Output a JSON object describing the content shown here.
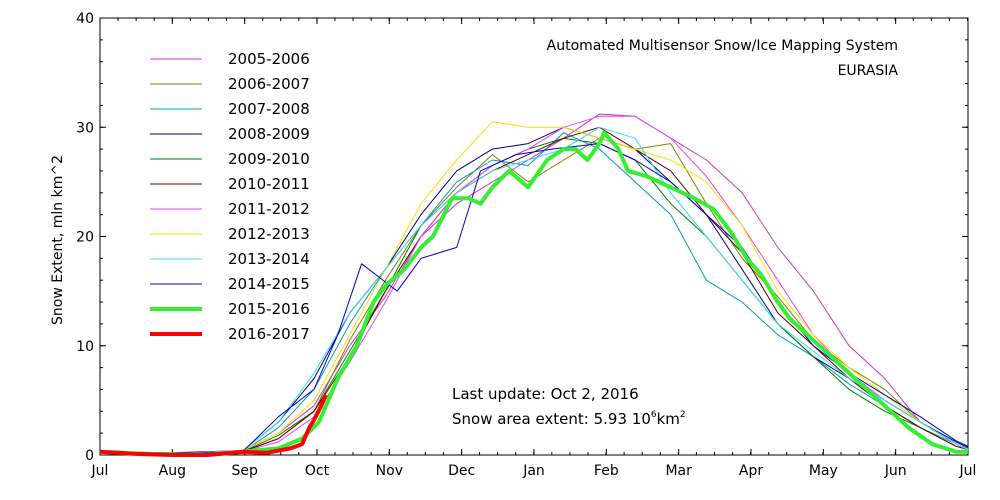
{
  "chart_data": {
    "type": "line",
    "title": "Automated  Multisensor Snow/Ice Mapping System",
    "subtitle": "EURASIA",
    "xlabel": "",
    "ylabel": "Snow Extent, mln km^2",
    "ylim": [
      0,
      40
    ],
    "y_ticks": [
      "0",
      "10",
      "20",
      "30",
      "40"
    ],
    "x_ticks": [
      "Jul",
      "Aug",
      "Sep",
      "Oct",
      "Nov",
      "Dec",
      "Jan",
      "Feb",
      "Mar",
      "Apr",
      "May",
      "Jun",
      "Jul"
    ],
    "grid": false,
    "legend_position": "top-left",
    "annotations": {
      "last_update": "Last update: Oct  2, 2016",
      "extent_text": "Snow area extent:  5.93 10",
      "extent_exp": "6",
      "extent_unit": "km",
      "extent_unit_exp": "2"
    },
    "series": [
      {
        "name": "2005-2006",
        "color": "#cc33cc",
        "width": 1,
        "points": [
          [
            0,
            0.3
          ],
          [
            30,
            0.1
          ],
          [
            60,
            0.4
          ],
          [
            75,
            2
          ],
          [
            90,
            4.5
          ],
          [
            105,
            10
          ],
          [
            120,
            14.5
          ],
          [
            135,
            20
          ],
          [
            150,
            23
          ],
          [
            165,
            25
          ],
          [
            180,
            27
          ],
          [
            195,
            29
          ],
          [
            210,
            31.2
          ],
          [
            225,
            31
          ],
          [
            240,
            29
          ],
          [
            255,
            27
          ],
          [
            270,
            24
          ],
          [
            285,
            19
          ],
          [
            300,
            15
          ],
          [
            315,
            10
          ],
          [
            330,
            7
          ],
          [
            345,
            3
          ],
          [
            360,
            1
          ],
          [
            365,
            0.6
          ]
        ]
      },
      {
        "name": "2006-2007",
        "color": "#808000",
        "width": 1,
        "points": [
          [
            0,
            0.3
          ],
          [
            30,
            0.1
          ],
          [
            60,
            0.3
          ],
          [
            75,
            1.5
          ],
          [
            90,
            4
          ],
          [
            105,
            10.5
          ],
          [
            120,
            16
          ],
          [
            135,
            21
          ],
          [
            150,
            24.5
          ],
          [
            165,
            27.5
          ],
          [
            180,
            25
          ],
          [
            195,
            27
          ],
          [
            210,
            29
          ],
          [
            225,
            28
          ],
          [
            240,
            28.5
          ],
          [
            255,
            23
          ],
          [
            270,
            18
          ],
          [
            285,
            14.5
          ],
          [
            300,
            10.5
          ],
          [
            315,
            8
          ],
          [
            330,
            6
          ],
          [
            345,
            3
          ],
          [
            360,
            1
          ],
          [
            365,
            0.5
          ]
        ]
      },
      {
        "name": "2007-2008",
        "color": "#0099cc",
        "width": 1,
        "points": [
          [
            0,
            0.3
          ],
          [
            30,
            0.1
          ],
          [
            60,
            0.3
          ],
          [
            75,
            2.5
          ],
          [
            90,
            6
          ],
          [
            105,
            12
          ],
          [
            120,
            17
          ],
          [
            135,
            21
          ],
          [
            150,
            25
          ],
          [
            165,
            27
          ],
          [
            180,
            26.5
          ],
          [
            195,
            29.5
          ],
          [
            210,
            28
          ],
          [
            225,
            25
          ],
          [
            240,
            22
          ],
          [
            255,
            16
          ],
          [
            270,
            14
          ],
          [
            285,
            11
          ],
          [
            300,
            9
          ],
          [
            315,
            6.5
          ],
          [
            330,
            4.5
          ],
          [
            345,
            2.5
          ],
          [
            360,
            1
          ],
          [
            365,
            0.5
          ]
        ]
      },
      {
        "name": "2008-2009",
        "color": "#000080",
        "width": 1,
        "points": [
          [
            0,
            0.3
          ],
          [
            30,
            0.2
          ],
          [
            60,
            0.4
          ],
          [
            75,
            3
          ],
          [
            90,
            7
          ],
          [
            105,
            13
          ],
          [
            120,
            17
          ],
          [
            135,
            22
          ],
          [
            150,
            26
          ],
          [
            165,
            28
          ],
          [
            180,
            28.5
          ],
          [
            195,
            30
          ],
          [
            210,
            29
          ],
          [
            225,
            28
          ],
          [
            240,
            25
          ],
          [
            255,
            22
          ],
          [
            270,
            17
          ],
          [
            285,
            12
          ],
          [
            300,
            9
          ],
          [
            315,
            7
          ],
          [
            330,
            5
          ],
          [
            345,
            3
          ],
          [
            360,
            1.2
          ],
          [
            365,
            0.7
          ]
        ]
      },
      {
        "name": "2009-2010",
        "color": "#008000",
        "width": 1,
        "points": [
          [
            0,
            0.3
          ],
          [
            30,
            0.1
          ],
          [
            60,
            0.3
          ],
          [
            75,
            1.8
          ],
          [
            90,
            4
          ],
          [
            105,
            9.5
          ],
          [
            120,
            15
          ],
          [
            135,
            21
          ],
          [
            150,
            24
          ],
          [
            165,
            26.5
          ],
          [
            180,
            28
          ],
          [
            195,
            29
          ],
          [
            210,
            28.5
          ],
          [
            225,
            27
          ],
          [
            240,
            23
          ],
          [
            255,
            20
          ],
          [
            270,
            16
          ],
          [
            285,
            12
          ],
          [
            300,
            9
          ],
          [
            315,
            6
          ],
          [
            330,
            4
          ],
          [
            345,
            2.5
          ],
          [
            360,
            0.8
          ],
          [
            365,
            0.5
          ]
        ]
      },
      {
        "name": "2010-2011",
        "color": "#660000",
        "width": 1,
        "points": [
          [
            0,
            0.3
          ],
          [
            30,
            0.1
          ],
          [
            60,
            0.3
          ],
          [
            75,
            1.5
          ],
          [
            90,
            4
          ],
          [
            105,
            9
          ],
          [
            120,
            15
          ],
          [
            135,
            20
          ],
          [
            150,
            24
          ],
          [
            165,
            26
          ],
          [
            180,
            27.5
          ],
          [
            195,
            29
          ],
          [
            210,
            30
          ],
          [
            225,
            28
          ],
          [
            240,
            26
          ],
          [
            255,
            22
          ],
          [
            270,
            18.5
          ],
          [
            285,
            13
          ],
          [
            300,
            10
          ],
          [
            315,
            7
          ],
          [
            330,
            4.5
          ],
          [
            345,
            2.5
          ],
          [
            360,
            0.8
          ],
          [
            365,
            0.5
          ]
        ]
      },
      {
        "name": "2011-2012",
        "color": "#ee44ee",
        "width": 1,
        "points": [
          [
            0,
            0.3
          ],
          [
            30,
            0.1
          ],
          [
            60,
            0.3
          ],
          [
            75,
            1.2
          ],
          [
            90,
            3.5
          ],
          [
            105,
            8.5
          ],
          [
            120,
            14
          ],
          [
            135,
            20
          ],
          [
            150,
            24
          ],
          [
            165,
            26.5
          ],
          [
            180,
            28
          ],
          [
            195,
            30
          ],
          [
            210,
            31
          ],
          [
            225,
            31
          ],
          [
            240,
            29
          ],
          [
            255,
            25.5
          ],
          [
            270,
            21
          ],
          [
            285,
            16
          ],
          [
            300,
            11
          ],
          [
            315,
            7.5
          ],
          [
            330,
            5
          ],
          [
            345,
            3
          ],
          [
            360,
            1
          ],
          [
            365,
            0.5
          ]
        ]
      },
      {
        "name": "2012-2013",
        "color": "#ffdd00",
        "width": 1,
        "points": [
          [
            0,
            0.3
          ],
          [
            30,
            0.1
          ],
          [
            60,
            0.4
          ],
          [
            75,
            2
          ],
          [
            90,
            5
          ],
          [
            105,
            11
          ],
          [
            120,
            17
          ],
          [
            135,
            23
          ],
          [
            150,
            27
          ],
          [
            165,
            30.5
          ],
          [
            180,
            30
          ],
          [
            195,
            30
          ],
          [
            210,
            29
          ],
          [
            225,
            28
          ],
          [
            240,
            27
          ],
          [
            255,
            25
          ],
          [
            270,
            21
          ],
          [
            285,
            15
          ],
          [
            300,
            11
          ],
          [
            315,
            8
          ],
          [
            330,
            5.5
          ],
          [
            345,
            3
          ],
          [
            360,
            1
          ],
          [
            365,
            0.5
          ]
        ]
      },
      {
        "name": "2013-2014",
        "color": "#33ddee",
        "width": 1,
        "points": [
          [
            0,
            0.3
          ],
          [
            30,
            0.1
          ],
          [
            60,
            0.4
          ],
          [
            75,
            3
          ],
          [
            90,
            7.5
          ],
          [
            105,
            13
          ],
          [
            120,
            17
          ],
          [
            135,
            21
          ],
          [
            150,
            24
          ],
          [
            165,
            26
          ],
          [
            180,
            27
          ],
          [
            195,
            28
          ],
          [
            210,
            30
          ],
          [
            225,
            29
          ],
          [
            240,
            24
          ],
          [
            255,
            20
          ],
          [
            270,
            16
          ],
          [
            285,
            12
          ],
          [
            300,
            9.5
          ],
          [
            315,
            7
          ],
          [
            330,
            5
          ],
          [
            345,
            3
          ],
          [
            360,
            1
          ],
          [
            365,
            0.5
          ]
        ]
      },
      {
        "name": "2014-2015",
        "color": "#0000cc",
        "width": 1,
        "points": [
          [
            0,
            0.3
          ],
          [
            30,
            0.1
          ],
          [
            60,
            0.3
          ],
          [
            75,
            3.5
          ],
          [
            90,
            6
          ],
          [
            100,
            11
          ],
          [
            110,
            17.5
          ],
          [
            125,
            15
          ],
          [
            135,
            18
          ],
          [
            150,
            19
          ],
          [
            160,
            26
          ],
          [
            175,
            27.5
          ],
          [
            190,
            28
          ],
          [
            210,
            28.5
          ],
          [
            225,
            27
          ],
          [
            240,
            25
          ],
          [
            255,
            22
          ],
          [
            270,
            19
          ],
          [
            285,
            14
          ],
          [
            300,
            10
          ],
          [
            315,
            7.5
          ],
          [
            330,
            5.5
          ],
          [
            345,
            3.5
          ],
          [
            360,
            1.3
          ],
          [
            365,
            0.8
          ]
        ]
      },
      {
        "name": "2015-2016",
        "color": "#33ee33",
        "width": 4,
        "points": [
          [
            0,
            0.3
          ],
          [
            20,
            0.1
          ],
          [
            45,
            0
          ],
          [
            60,
            0.3
          ],
          [
            75,
            0.6
          ],
          [
            85,
            1.5
          ],
          [
            92,
            3
          ],
          [
            100,
            7
          ],
          [
            108,
            10
          ],
          [
            115,
            14
          ],
          [
            120,
            15.5
          ],
          [
            128,
            17
          ],
          [
            135,
            19
          ],
          [
            140,
            20
          ],
          [
            148,
            23.5
          ],
          [
            155,
            23.5
          ],
          [
            160,
            23
          ],
          [
            165,
            24.5
          ],
          [
            172,
            26
          ],
          [
            180,
            24.5
          ],
          [
            188,
            27
          ],
          [
            195,
            28
          ],
          [
            200,
            28
          ],
          [
            205,
            27
          ],
          [
            210,
            28.5
          ],
          [
            212,
            29.5
          ],
          [
            218,
            28
          ],
          [
            222,
            26
          ],
          [
            230,
            25.5
          ],
          [
            240,
            24.5
          ],
          [
            250,
            23.5
          ],
          [
            258,
            22.5
          ],
          [
            265,
            20.5
          ],
          [
            272,
            18
          ],
          [
            278,
            16.5
          ],
          [
            285,
            14
          ],
          [
            290,
            12.5
          ],
          [
            300,
            10.5
          ],
          [
            310,
            8.5
          ],
          [
            320,
            6.5
          ],
          [
            330,
            4.5
          ],
          [
            340,
            2.5
          ],
          [
            350,
            1
          ],
          [
            360,
            0.3
          ],
          [
            365,
            0.3
          ]
        ]
      },
      {
        "name": "2016-2017",
        "color": "#ff0000",
        "width": 4,
        "points": [
          [
            0,
            0.3
          ],
          [
            15,
            0.1
          ],
          [
            30,
            0
          ],
          [
            45,
            0
          ],
          [
            60,
            0.3
          ],
          [
            70,
            0.2
          ],
          [
            80,
            0.6
          ],
          [
            85,
            1
          ],
          [
            88,
            2.5
          ],
          [
            90,
            3.2
          ],
          [
            93,
            4.5
          ],
          [
            95,
            5.5
          ]
        ]
      }
    ]
  }
}
